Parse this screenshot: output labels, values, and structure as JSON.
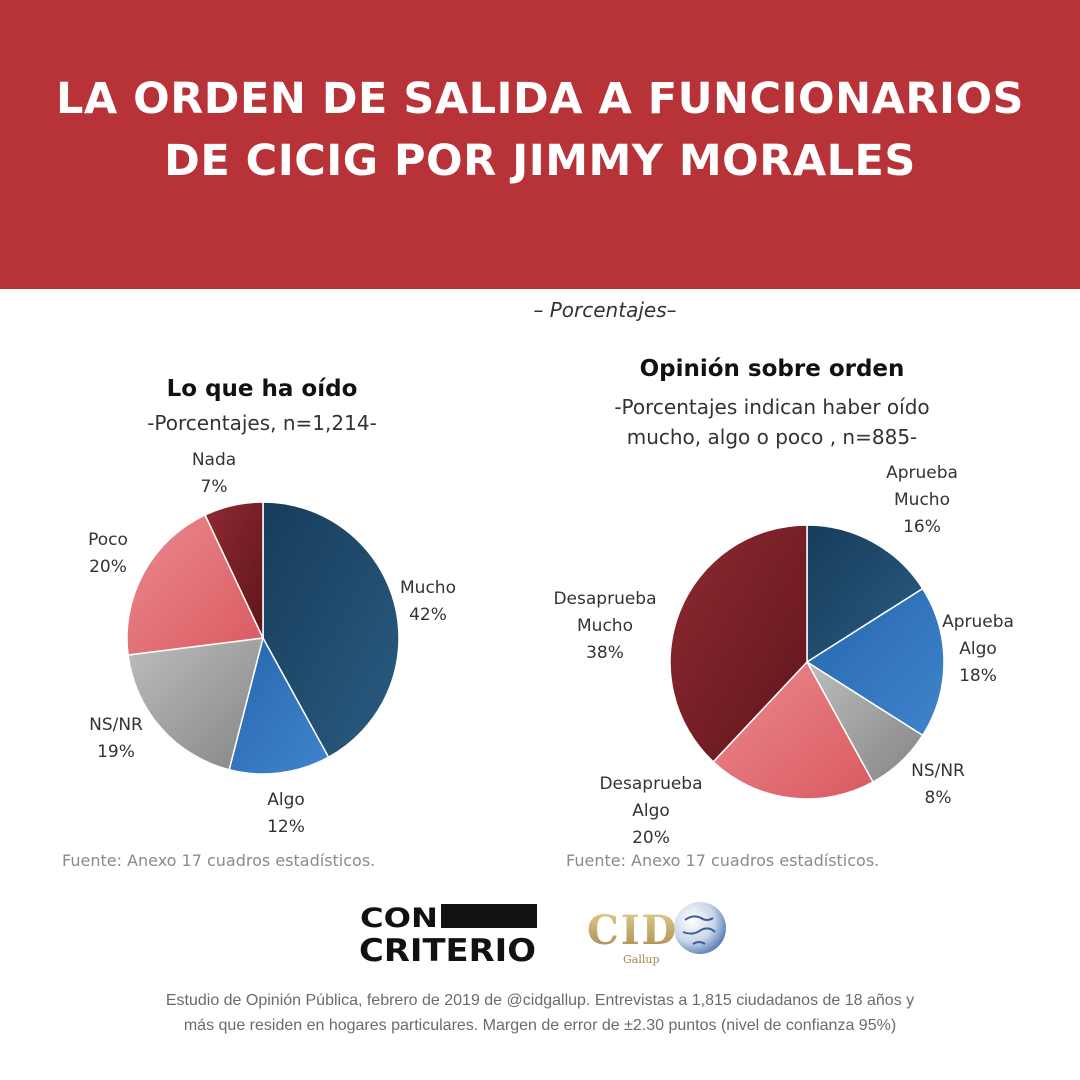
{
  "header": {
    "title": "LA ORDEN DE SALIDA A FUNCIONARIOS DE CICIG POR JIMMY MORALES",
    "subtitle": "– Porcentajes–"
  },
  "colors": {
    "banner": "#b83338",
    "navy": "#1f4a6b",
    "blue": "#2f6fb5",
    "grey": "#9e9e9e",
    "pink": "#e06c72",
    "darkred": "#7c1f26"
  },
  "chart_data": [
    {
      "type": "pie",
      "title": "Lo que ha oído",
      "subtitle": "-Porcentajes, n=1,214-",
      "slices": [
        {
          "label": "Mucho",
          "value": 42
        },
        {
          "label": "Algo",
          "value": 12
        },
        {
          "label": "NS/NR",
          "value": 19
        },
        {
          "label": "Poco",
          "value": 20
        },
        {
          "label": "Nada",
          "value": 7
        }
      ],
      "value_suffix": "%",
      "source": "Fuente: Anexo 17 cuadros estadísticos."
    },
    {
      "type": "pie",
      "title": "Opinión sobre orden",
      "subtitle_lines": [
        "-Porcentajes indican haber oído",
        "mucho, algo o poco , n=885-"
      ],
      "slices": [
        {
          "label": "Aprueba Mucho",
          "value": 16
        },
        {
          "label": "Aprueba Algo",
          "value": 18
        },
        {
          "label": "NS/NR",
          "value": 8
        },
        {
          "label": "Desaprueba Algo",
          "value": 20
        },
        {
          "label": "Desaprueba Mucho",
          "value": 38
        }
      ],
      "value_suffix": "%",
      "source": "Fuente: Anexo 17 cuadros estadísticos."
    }
  ],
  "logos": {
    "concriterio_line1": "CON",
    "concriterio_line2": "CRITERIO",
    "cid_text": "CID",
    "cid_sub": "Gallup"
  },
  "footer": {
    "line1": "Estudio de Opinión Pública, febrero de 2019 de @cidgallup.  Entrevistas a 1,815 ciudadanos de 18 años y",
    "line2": "más que residen en hogares particulares. Margen de error de ±2.30 puntos (nivel de confianza 95%)"
  }
}
